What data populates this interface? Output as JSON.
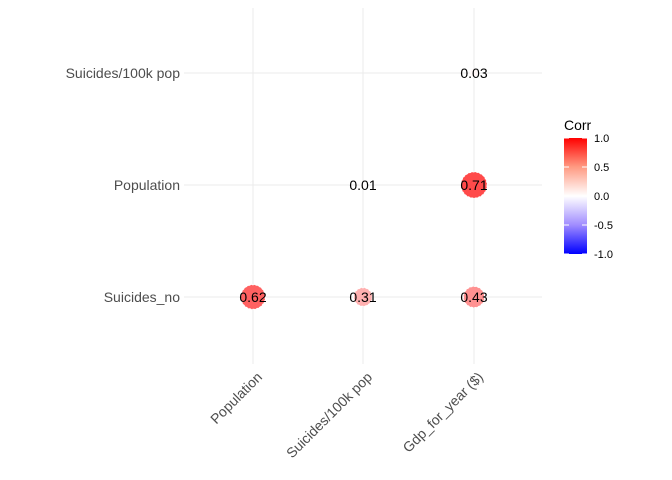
{
  "chart_data": {
    "type": "heatmap",
    "style": "circle-correlogram-lower-triangle",
    "x_categories": [
      "Population",
      "Suicides/100k pop",
      "Gdp_for_year ($)"
    ],
    "y_categories": [
      "Suicides_no",
      "Population",
      "Suicides/100k pop"
    ],
    "cells": [
      {
        "x": "Population",
        "y": "Suicides_no",
        "value": 0.62,
        "label": "0.62"
      },
      {
        "x": "Suicides/100k pop",
        "y": "Suicides_no",
        "value": 0.31,
        "label": "0.31"
      },
      {
        "x": "Gdp_for_year ($)",
        "y": "Suicides_no",
        "value": 0.43,
        "label": "0.43"
      },
      {
        "x": "Suicides/100k pop",
        "y": "Population",
        "value": 0.01,
        "label": "0.01"
      },
      {
        "x": "Gdp_for_year ($)",
        "y": "Population",
        "value": 0.71,
        "label": "0.71"
      },
      {
        "x": "Gdp_for_year ($)",
        "y": "Suicides/100k pop",
        "value": 0.03,
        "label": "0.03"
      }
    ],
    "legend": {
      "title": "Corr",
      "placement": "right",
      "ticks": [
        1.0,
        0.5,
        0.0,
        -0.5,
        -1.0
      ],
      "tick_labels": [
        "1.0",
        "0.5",
        "0.0",
        "-0.5",
        "-1.0"
      ],
      "range": [
        -1,
        1
      ]
    },
    "colors": {
      "high": "#ff0000",
      "mid": "#ffffff",
      "low": "#0000ff",
      "grid": "#ebebeb"
    },
    "grid": true
  }
}
